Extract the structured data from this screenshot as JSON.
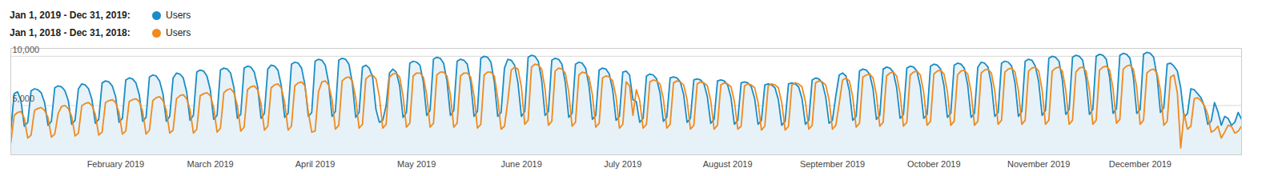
{
  "chart_data": {
    "type": "line",
    "legend": "top-left",
    "grid": true,
    "xlim": [
      1,
      365
    ],
    "xticks": [
      {
        "value": 32,
        "label": "February 2019"
      },
      {
        "value": 60,
        "label": "March 2019"
      },
      {
        "value": 91,
        "label": "April 2019"
      },
      {
        "value": 121,
        "label": "May 2019"
      },
      {
        "value": 152,
        "label": "June 2019"
      },
      {
        "value": 182,
        "label": "July 2019"
      },
      {
        "value": 213,
        "label": "August 2019"
      },
      {
        "value": 244,
        "label": "September 2019"
      },
      {
        "value": 274,
        "label": "October 2019"
      },
      {
        "value": 305,
        "label": "November 2019"
      },
      {
        "value": 335,
        "label": "December 2019"
      }
    ],
    "ylim": [
      0,
      10800
    ],
    "yticks": [
      {
        "value": 5000,
        "label": "5,000"
      },
      {
        "value": 10000,
        "label": "10,000"
      }
    ],
    "x": [
      1,
      2,
      3,
      4,
      5,
      6,
      7,
      8,
      9,
      10,
      11,
      12,
      13,
      14,
      15,
      16,
      17,
      18,
      19,
      20,
      21,
      22,
      23,
      24,
      25,
      26,
      27,
      28,
      29,
      30,
      31,
      32,
      33,
      34,
      35,
      36,
      37,
      38,
      39,
      40,
      41,
      42,
      43,
      44,
      45,
      46,
      47,
      48,
      49,
      50,
      51,
      52,
      53,
      54,
      55,
      56,
      57,
      58,
      59,
      60,
      61,
      62,
      63,
      64,
      65,
      66,
      67,
      68,
      69,
      70,
      71,
      72,
      73,
      74,
      75,
      76,
      77,
      78,
      79,
      80,
      81,
      82,
      83,
      84,
      85,
      86,
      87,
      88,
      89,
      90,
      91,
      92,
      93,
      94,
      95,
      96,
      97,
      98,
      99,
      100,
      101,
      102,
      103,
      104,
      105,
      106,
      107,
      108,
      109,
      110,
      111,
      112,
      113,
      114,
      115,
      116,
      117,
      118,
      119,
      120,
      121,
      122,
      123,
      124,
      125,
      126,
      127,
      128,
      129,
      130,
      131,
      132,
      133,
      134,
      135,
      136,
      137,
      138,
      139,
      140,
      141,
      142,
      143,
      144,
      145,
      146,
      147,
      148,
      149,
      150,
      151,
      152,
      153,
      154,
      155,
      156,
      157,
      158,
      159,
      160,
      161,
      162,
      163,
      164,
      165,
      166,
      167,
      168,
      169,
      170,
      171,
      172,
      173,
      174,
      175,
      176,
      177,
      178,
      179,
      180,
      181,
      182,
      183,
      184,
      185,
      186,
      187,
      188,
      189,
      190,
      191,
      192,
      193,
      194,
      195,
      196,
      197,
      198,
      199,
      200,
      201,
      202,
      203,
      204,
      205,
      206,
      207,
      208,
      209,
      210,
      211,
      212,
      213,
      214,
      215,
      216,
      217,
      218,
      219,
      220,
      221,
      222,
      223,
      224,
      225,
      226,
      227,
      228,
      229,
      230,
      231,
      232,
      233,
      234,
      235,
      236,
      237,
      238,
      239,
      240,
      241,
      242,
      243,
      244,
      245,
      246,
      247,
      248,
      249,
      250,
      251,
      252,
      253,
      254,
      255,
      256,
      257,
      258,
      259,
      260,
      261,
      262,
      263,
      264,
      265,
      266,
      267,
      268,
      269,
      270,
      271,
      272,
      273,
      274,
      275,
      276,
      277,
      278,
      279,
      280,
      281,
      282,
      283,
      284,
      285,
      286,
      287,
      288,
      289,
      290,
      291,
      292,
      293,
      294,
      295,
      296,
      297,
      298,
      299,
      300,
      301,
      302,
      303,
      304,
      305,
      306,
      307,
      308,
      309,
      310,
      311,
      312,
      313,
      314,
      315,
      316,
      317,
      318,
      319,
      320,
      321,
      322,
      323,
      324,
      325,
      326,
      327,
      328,
      329,
      330,
      331,
      332,
      333,
      334,
      335,
      336,
      337,
      338,
      339,
      340,
      341,
      342,
      343,
      344,
      345,
      346,
      347,
      348,
      349,
      350,
      351,
      352,
      353,
      354,
      355,
      356,
      357,
      358,
      359,
      360,
      361,
      362,
      363,
      364,
      365
    ],
    "series": [
      {
        "name": "Users",
        "period": "Jan 1, 2019 - Dec 31, 2019:",
        "color": "#1a8cc6",
        "values": [
          2500,
          6200,
          6400,
          5500,
          2900,
          3300,
          6500,
          6700,
          6600,
          6300,
          5300,
          3000,
          3400,
          6800,
          7000,
          6900,
          6500,
          5500,
          3100,
          3500,
          6700,
          7200,
          7100,
          6700,
          5600,
          3200,
          3600,
          7300,
          7500,
          7400,
          7000,
          5900,
          3300,
          3700,
          7600,
          7800,
          7700,
          7300,
          6100,
          3400,
          3800,
          7900,
          8100,
          8000,
          7500,
          6200,
          3400,
          3900,
          7800,
          8300,
          8200,
          7800,
          6400,
          3500,
          4000,
          8400,
          8600,
          8500,
          8000,
          6600,
          3600,
          4000,
          8600,
          8800,
          8700,
          8300,
          6800,
          3700,
          4100,
          8800,
          9000,
          8900,
          8400,
          6900,
          3700,
          4200,
          8700,
          9100,
          9000,
          8600,
          7000,
          3800,
          4200,
          9200,
          9400,
          9300,
          8800,
          7100,
          3900,
          4300,
          9500,
          9700,
          9600,
          9100,
          7300,
          3900,
          4400,
          9600,
          9800,
          9700,
          9200,
          7300,
          3800,
          4300,
          8900,
          9100,
          8800,
          7900,
          4600,
          3300,
          3500,
          5000,
          8300,
          8700,
          8400,
          7000,
          3800,
          4300,
          9300,
          9500,
          9400,
          9100,
          7400,
          4000,
          4500,
          9700,
          9900,
          9800,
          9300,
          7500,
          4000,
          4500,
          9500,
          9700,
          9600,
          9200,
          7400,
          3900,
          4400,
          9800,
          10000,
          9900,
          9400,
          7400,
          3900,
          4300,
          8800,
          9700,
          9600,
          9100,
          7300,
          3900,
          4400,
          9900,
          10100,
          10000,
          9500,
          7600,
          4000,
          4400,
          9600,
          9800,
          9700,
          9200,
          7300,
          3800,
          4200,
          9200,
          9400,
          9300,
          8800,
          7000,
          3600,
          4000,
          8600,
          8800,
          8700,
          8200,
          6600,
          3500,
          3900,
          8400,
          8500,
          8100,
          5600,
          5400,
          3300,
          3700,
          8000,
          8200,
          8100,
          7700,
          6300,
          3400,
          3800,
          7800,
          7900,
          7800,
          7400,
          6100,
          3300,
          3700,
          7600,
          7700,
          7600,
          7200,
          5900,
          3200,
          3600,
          7500,
          7600,
          7500,
          7100,
          5800,
          3100,
          3500,
          7300,
          7400,
          7300,
          6900,
          5700,
          3100,
          3500,
          7100,
          7200,
          7100,
          6800,
          5600,
          3000,
          3400,
          7200,
          7300,
          7200,
          6900,
          5700,
          3100,
          3500,
          7600,
          7800,
          7700,
          7300,
          5900,
          3200,
          3500,
          6000,
          8100,
          8300,
          8000,
          6500,
          3500,
          3900,
          8500,
          8700,
          8600,
          8200,
          6700,
          3600,
          4000,
          8700,
          8900,
          8800,
          8400,
          6800,
          3700,
          4100,
          8800,
          9000,
          8900,
          8500,
          6900,
          3700,
          4100,
          9000,
          9200,
          9100,
          8700,
          7000,
          3800,
          4200,
          9100,
          9300,
          9200,
          8800,
          7100,
          3800,
          4200,
          8900,
          9400,
          9300,
          8900,
          7200,
          3900,
          4300,
          9300,
          9500,
          9400,
          9000,
          7300,
          3900,
          4400,
          9500,
          9700,
          9600,
          9000,
          7400,
          4000,
          4500,
          9800,
          10000,
          9900,
          9500,
          7600,
          4100,
          4600,
          9900,
          10100,
          10000,
          9600,
          7700,
          4100,
          4600,
          10000,
          10200,
          10100,
          9700,
          7800,
          4200,
          4700,
          10100,
          10300,
          10200,
          9800,
          7900,
          4200,
          4600,
          10200,
          10400,
          10300,
          9900,
          8000,
          4300,
          4800,
          9200,
          9300,
          9000,
          8500,
          6800,
          3800,
          4200,
          6700,
          6600,
          6200,
          5800,
          4900,
          3100,
          3400,
          5300,
          4400,
          3000,
          3900,
          3700,
          3000,
          3300,
          4300,
          3600
        ]
      },
      {
        "name": "Users",
        "period": "Jan 1, 2018 - Dec 31, 2018:",
        "color": "#f08a1e",
        "values": [
          1200,
          4000,
          4300,
          4400,
          3700,
          1700,
          2000,
          4500,
          4700,
          4800,
          4500,
          3800,
          1800,
          2100,
          4200,
          4900,
          5000,
          4700,
          3900,
          1900,
          2200,
          5000,
          5200,
          5300,
          5000,
          4100,
          2000,
          2300,
          5300,
          5500,
          5600,
          5300,
          4300,
          2100,
          2400,
          5400,
          5600,
          5700,
          5400,
          4400,
          2100,
          2500,
          5500,
          5800,
          5900,
          5500,
          4500,
          2200,
          2500,
          5700,
          6000,
          6100,
          5700,
          4600,
          2200,
          2600,
          6000,
          6200,
          6300,
          6000,
          4800,
          2300,
          2700,
          6300,
          6600,
          6700,
          6300,
          5000,
          2400,
          2800,
          6600,
          6900,
          7000,
          6600,
          5200,
          2500,
          2900,
          6800,
          7100,
          7200,
          6800,
          5300,
          2500,
          2900,
          7000,
          7300,
          7400,
          7000,
          4300,
          2300,
          2400,
          6400,
          7400,
          7500,
          7100,
          5600,
          2600,
          3000,
          7500,
          7800,
          7900,
          7500,
          5800,
          2700,
          3100,
          7700,
          8000,
          8100,
          7700,
          5900,
          2700,
          3100,
          7900,
          8200,
          8300,
          7900,
          6000,
          2800,
          3200,
          8000,
          8300,
          8300,
          7900,
          6100,
          2800,
          3200,
          8100,
          8400,
          8400,
          8000,
          6100,
          2800,
          3200,
          8000,
          8300,
          8300,
          7900,
          6000,
          2700,
          3100,
          8100,
          8400,
          8400,
          8000,
          5800,
          2600,
          2900,
          5500,
          8600,
          8900,
          8700,
          6900,
          3100,
          3500,
          8900,
          9200,
          9100,
          8700,
          6700,
          3000,
          3400,
          8500,
          8800,
          8700,
          8300,
          6400,
          2900,
          3300,
          8100,
          8400,
          8300,
          7900,
          6100,
          2800,
          3200,
          7800,
          8000,
          7900,
          7500,
          5900,
          2700,
          3100,
          7400,
          7000,
          4000,
          6600,
          5500,
          2700,
          3100,
          7400,
          7600,
          7500,
          7200,
          5700,
          2700,
          3100,
          7300,
          7500,
          7400,
          7100,
          5600,
          2600,
          3000,
          7200,
          7400,
          7300,
          7000,
          5500,
          2600,
          3000,
          7100,
          7300,
          7200,
          6900,
          5400,
          2600,
          2900,
          7000,
          7200,
          7100,
          6800,
          5300,
          2500,
          2900,
          7000,
          7200,
          7100,
          6800,
          5300,
          2500,
          2900,
          7100,
          7300,
          7200,
          6900,
          5400,
          2600,
          3000,
          7300,
          7500,
          7400,
          7100,
          5600,
          2600,
          3000,
          5200,
          7600,
          7800,
          7500,
          5900,
          2800,
          3200,
          7900,
          8100,
          8200,
          7800,
          6100,
          2900,
          3300,
          8000,
          8300,
          8400,
          8000,
          6200,
          2900,
          3300,
          8100,
          8400,
          8500,
          8100,
          6300,
          3000,
          3400,
          8200,
          8500,
          8600,
          8200,
          6400,
          3000,
          3400,
          8100,
          8500,
          8600,
          8200,
          6400,
          3000,
          3400,
          8300,
          8600,
          8700,
          8300,
          6500,
          3100,
          3500,
          8400,
          8700,
          8800,
          8400,
          6500,
          3100,
          3500,
          8500,
          8800,
          8900,
          8500,
          6600,
          3100,
          3500,
          8500,
          8800,
          8900,
          8500,
          6600,
          3100,
          3500,
          8400,
          8800,
          8900,
          8500,
          6600,
          3100,
          3500,
          8600,
          8900,
          9000,
          8600,
          6700,
          3200,
          3600,
          8700,
          9000,
          9100,
          8700,
          6800,
          3100,
          3500,
          8300,
          8600,
          8700,
          8300,
          6500,
          3000,
          3400,
          7900,
          8100,
          6300,
          700,
          4200,
          2600,
          2900,
          5700,
          5800,
          5500,
          5000,
          4100,
          2300,
          2500,
          2900,
          1700,
          2300,
          3000,
          2900,
          2200,
          2400,
          2900
        ]
      }
    ]
  }
}
